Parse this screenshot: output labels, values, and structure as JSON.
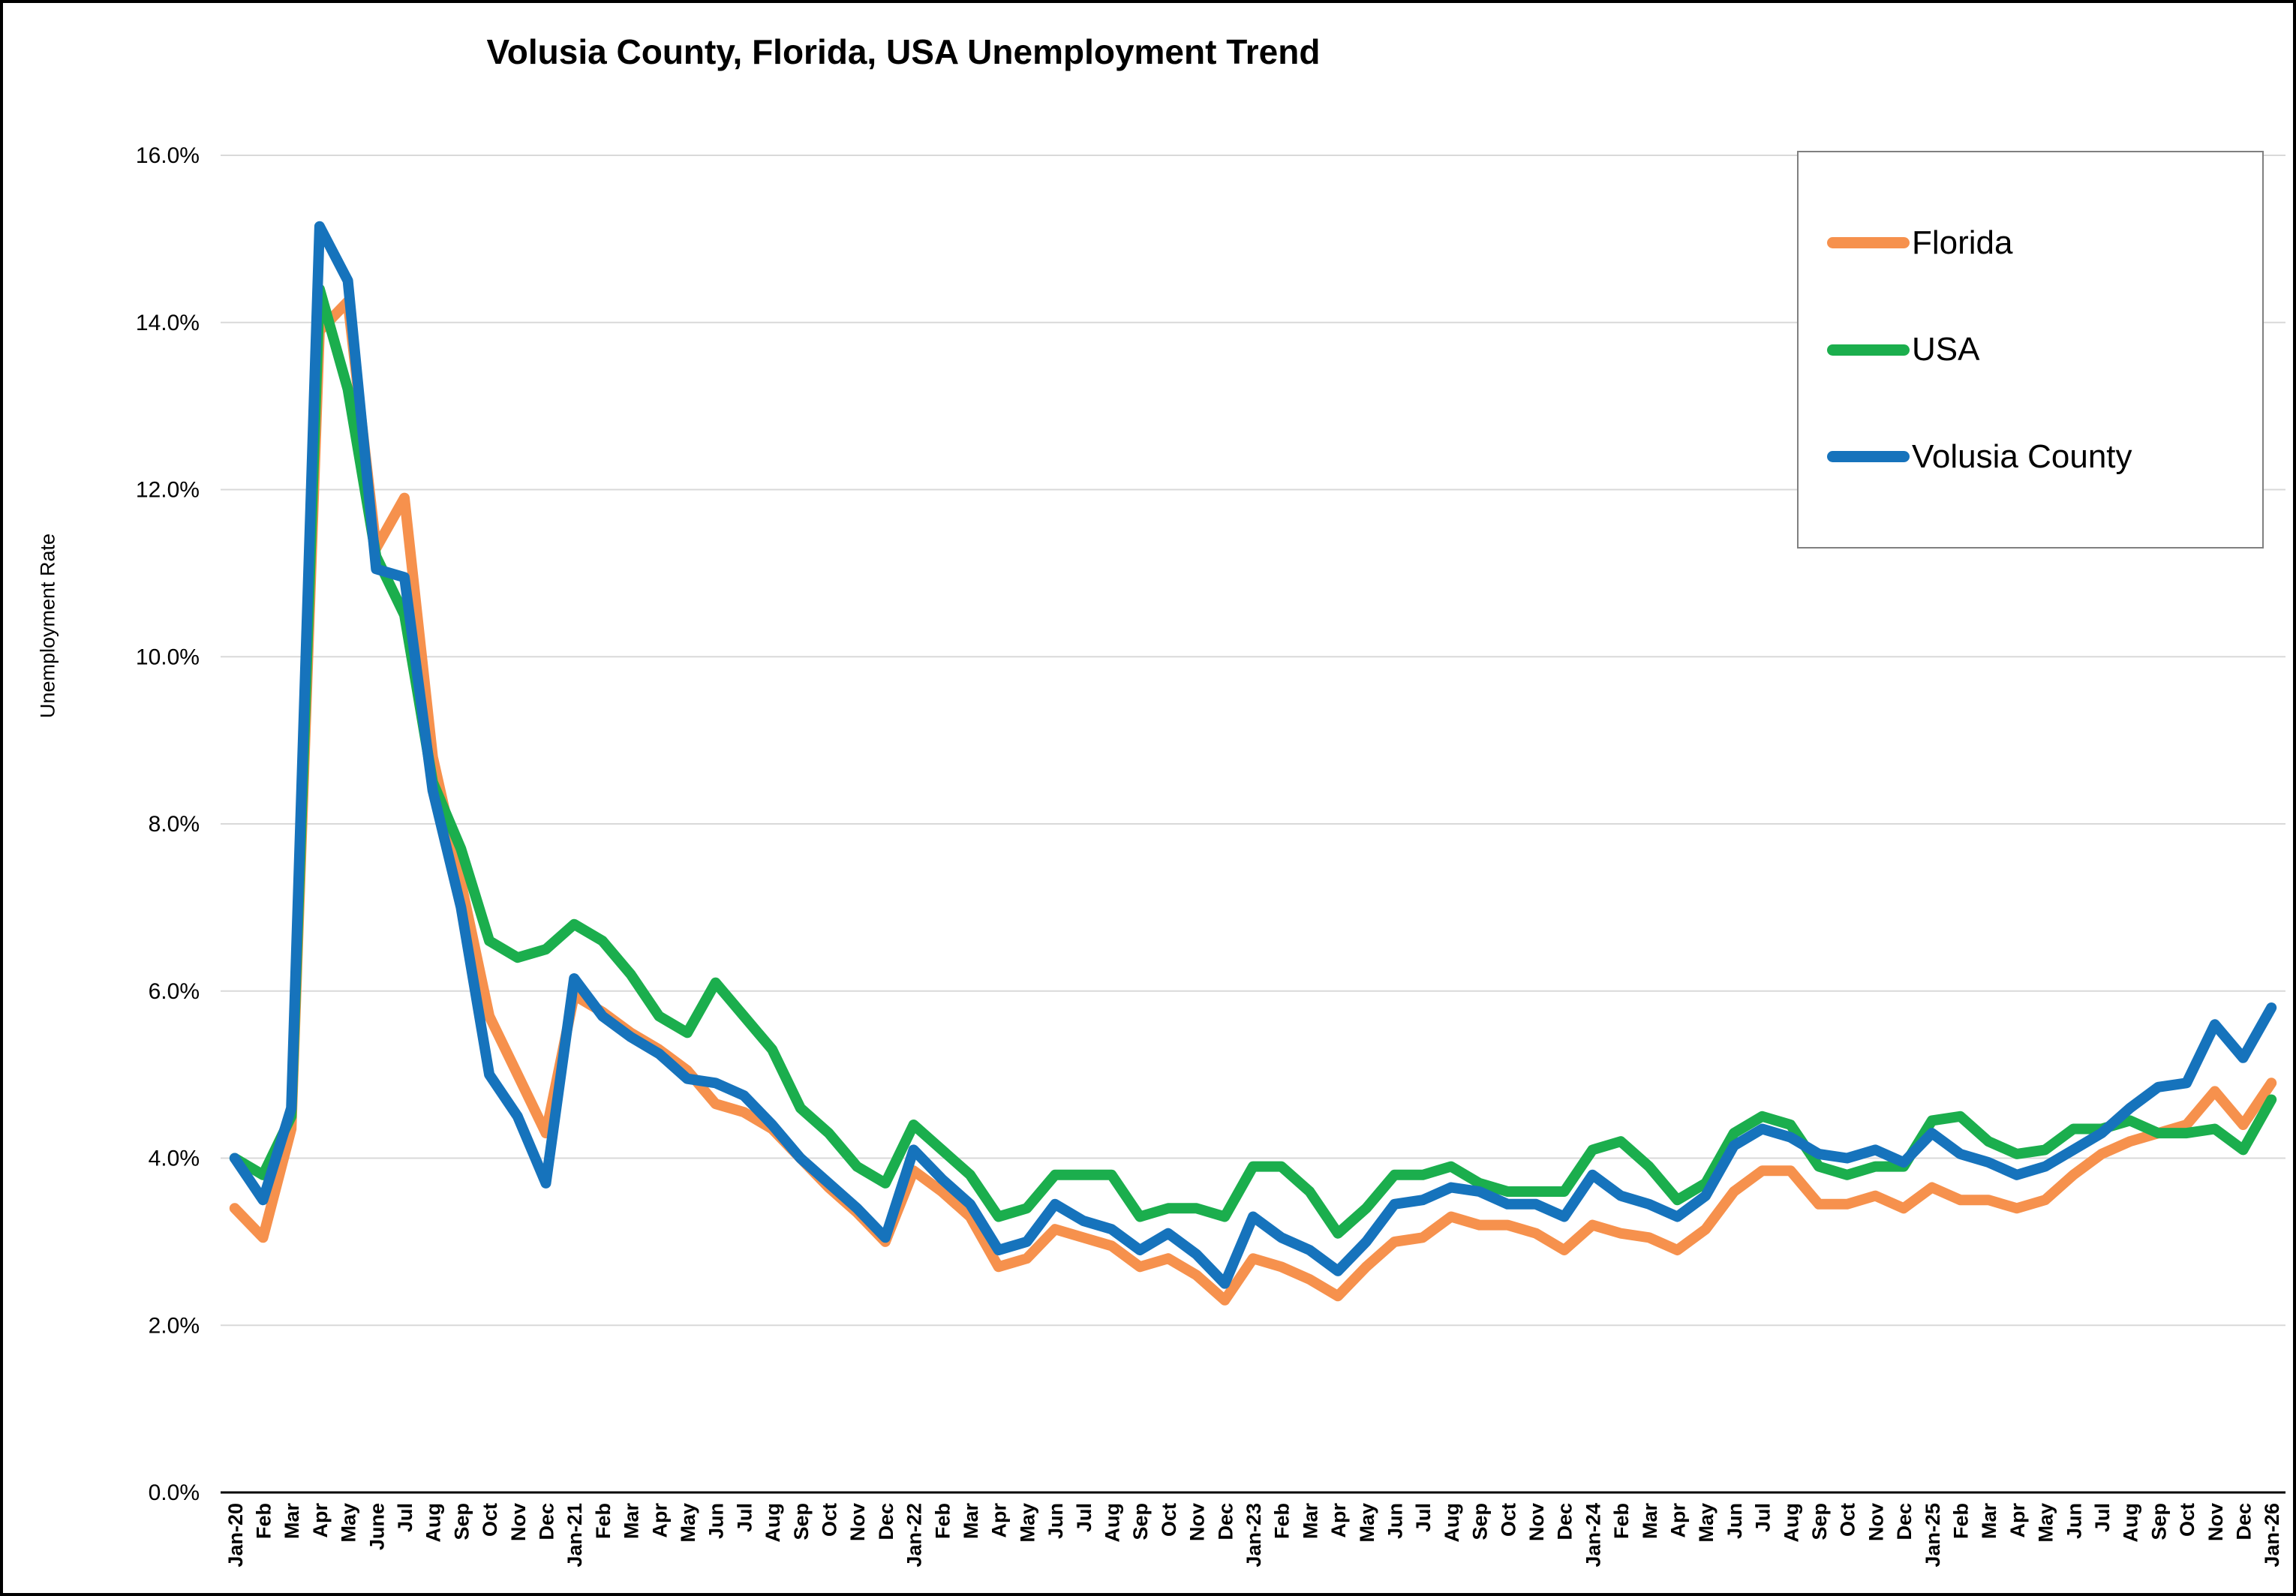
{
  "chart_data": {
    "type": "line",
    "title": "Volusia County, Florida, USA Unemployment Trend",
    "xlabel": "",
    "ylabel": "Unemployment Rate",
    "ylim": [
      0,
      16
    ],
    "grid": true,
    "legend_position": "top-right",
    "y_tick_values": [
      0,
      2,
      4,
      6,
      8,
      10,
      12,
      14,
      16
    ],
    "y_tick_labels": [
      "0.0%",
      "2.0%",
      "4.0%",
      "6.0%",
      "8.0%",
      "10.0%",
      "12.0%",
      "14.0%",
      "16.0%"
    ],
    "grid_color": "#D9D9D9",
    "axis_color": "#000000",
    "categories": [
      "Jan-20",
      "Feb",
      "Mar",
      "Apr",
      "May",
      "June",
      "Jul",
      "Aug",
      "Sep",
      "Oct",
      "Nov",
      "Dec",
      "Jan-21",
      "Feb",
      "Mar",
      "Apr",
      "May",
      "Jun",
      "Jul",
      "Aug",
      "Sep",
      "Oct",
      "Nov",
      "Dec",
      "Jan-22",
      "Feb",
      "Mar",
      "Apr",
      "May",
      "Jun",
      "Jul",
      "Aug",
      "Sep",
      "Oct",
      "Nov",
      "Dec",
      "Jan-23",
      "Feb",
      "Mar",
      "Apr",
      "May",
      "Jun",
      "Jul",
      "Aug",
      "Sep",
      "Oct",
      "Nov",
      "Dec",
      "Jan-24",
      "Feb",
      "Mar",
      "Apr",
      "May",
      "Jun",
      "Jul",
      "Aug",
      "Sep",
      "Oct",
      "Nov",
      "Dec",
      "Jan-25",
      "Feb",
      "Mar",
      "Apr",
      "May",
      "Jun",
      "Jul",
      "Aug",
      "Sep",
      "Oct",
      "Nov",
      "Dec",
      "Jan-26"
    ],
    "series": [
      {
        "name": "Florida",
        "color": "#F6914D",
        "values": [
          3.4,
          3.05,
          4.35,
          13.9,
          14.25,
          11.3,
          11.9,
          8.8,
          7.3,
          5.7,
          5.0,
          4.3,
          5.95,
          5.75,
          5.5,
          5.3,
          5.05,
          4.65,
          4.55,
          4.35,
          4.0,
          3.65,
          3.35,
          3.0,
          3.85,
          3.6,
          3.3,
          2.7,
          2.8,
          3.15,
          3.05,
          2.95,
          2.7,
          2.8,
          2.6,
          2.3,
          2.8,
          2.7,
          2.55,
          2.35,
          2.7,
          3.0,
          3.05,
          3.3,
          3.2,
          3.2,
          3.1,
          2.9,
          3.2,
          3.1,
          3.05,
          2.9,
          3.15,
          3.6,
          3.85,
          3.85,
          3.45,
          3.45,
          3.55,
          3.4,
          3.65,
          3.5,
          3.5,
          3.4,
          3.5,
          3.8,
          4.05,
          4.2,
          4.3,
          4.4,
          4.8,
          4.4,
          4.9
        ]
      },
      {
        "name": "USA",
        "color": "#1BAE4D",
        "values": [
          4.0,
          3.8,
          4.5,
          14.4,
          13.2,
          11.2,
          10.5,
          8.5,
          7.7,
          6.6,
          6.4,
          6.5,
          6.8,
          6.6,
          6.2,
          5.7,
          5.5,
          6.1,
          5.7,
          5.3,
          4.6,
          4.3,
          3.9,
          3.7,
          4.4,
          4.1,
          3.8,
          3.3,
          3.4,
          3.8,
          3.8,
          3.8,
          3.3,
          3.4,
          3.4,
          3.3,
          3.9,
          3.9,
          3.6,
          3.1,
          3.4,
          3.8,
          3.8,
          3.9,
          3.7,
          3.6,
          3.6,
          3.6,
          4.1,
          4.2,
          3.9,
          3.5,
          3.7,
          4.3,
          4.5,
          4.4,
          3.9,
          3.8,
          3.9,
          3.9,
          4.45,
          4.5,
          4.2,
          4.05,
          4.1,
          4.35,
          4.35,
          4.45,
          4.3,
          4.3,
          4.35,
          4.1,
          4.7
        ]
      },
      {
        "name": "Volusia County",
        "color": "#1673BC",
        "values": [
          4.0,
          3.5,
          4.6,
          15.15,
          14.5,
          11.05,
          10.95,
          8.4,
          7.0,
          5.0,
          4.5,
          3.7,
          6.15,
          5.7,
          5.45,
          5.25,
          4.95,
          4.9,
          4.75,
          4.4,
          4.0,
          3.7,
          3.4,
          3.05,
          4.1,
          3.75,
          3.45,
          2.9,
          3.0,
          3.45,
          3.25,
          3.15,
          2.9,
          3.1,
          2.85,
          2.5,
          3.3,
          3.05,
          2.9,
          2.65,
          3.0,
          3.45,
          3.5,
          3.65,
          3.6,
          3.45,
          3.45,
          3.3,
          3.8,
          3.55,
          3.45,
          3.3,
          3.55,
          4.15,
          4.35,
          4.25,
          4.05,
          4.0,
          4.1,
          3.95,
          4.3,
          4.05,
          3.95,
          3.8,
          3.9,
          4.1,
          4.3,
          4.6,
          4.85,
          4.9,
          5.6,
          5.2,
          5.8
        ]
      }
    ]
  }
}
